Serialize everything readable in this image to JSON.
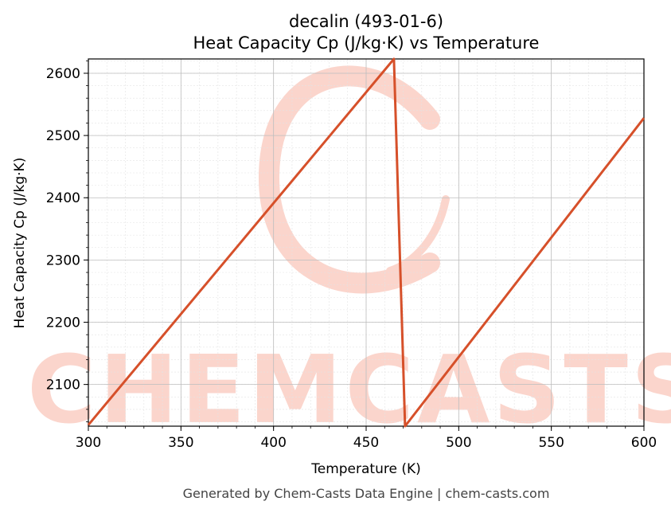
{
  "chart_data": {
    "type": "line",
    "title": "decalin (493-01-6)",
    "subtitle": "Heat Capacity Cp (J/kg·K) vs Temperature",
    "xlabel": "Temperature (K)",
    "ylabel": "Heat Capacity Cp (J/kg·K)",
    "xlim": [
      300,
      600
    ],
    "ylim": [
      2033,
      2623
    ],
    "xticks": [
      300,
      350,
      400,
      450,
      500,
      550,
      600
    ],
    "yticks": [
      2100,
      2200,
      2300,
      2400,
      2500,
      2600
    ],
    "grid": true,
    "series": [
      {
        "color": "#d6502a",
        "x": [
          300,
          465,
          471,
          600
        ],
        "y": [
          2035,
          2623,
          2033,
          2528
        ]
      }
    ]
  },
  "footer": "Generated by Chem-Casts Data Engine | chem-casts.com",
  "watermark": "CHEMCASTS",
  "colors": {
    "line": "#d6502a",
    "watermark": "#fbd5cc",
    "grid": "#cccccc"
  }
}
